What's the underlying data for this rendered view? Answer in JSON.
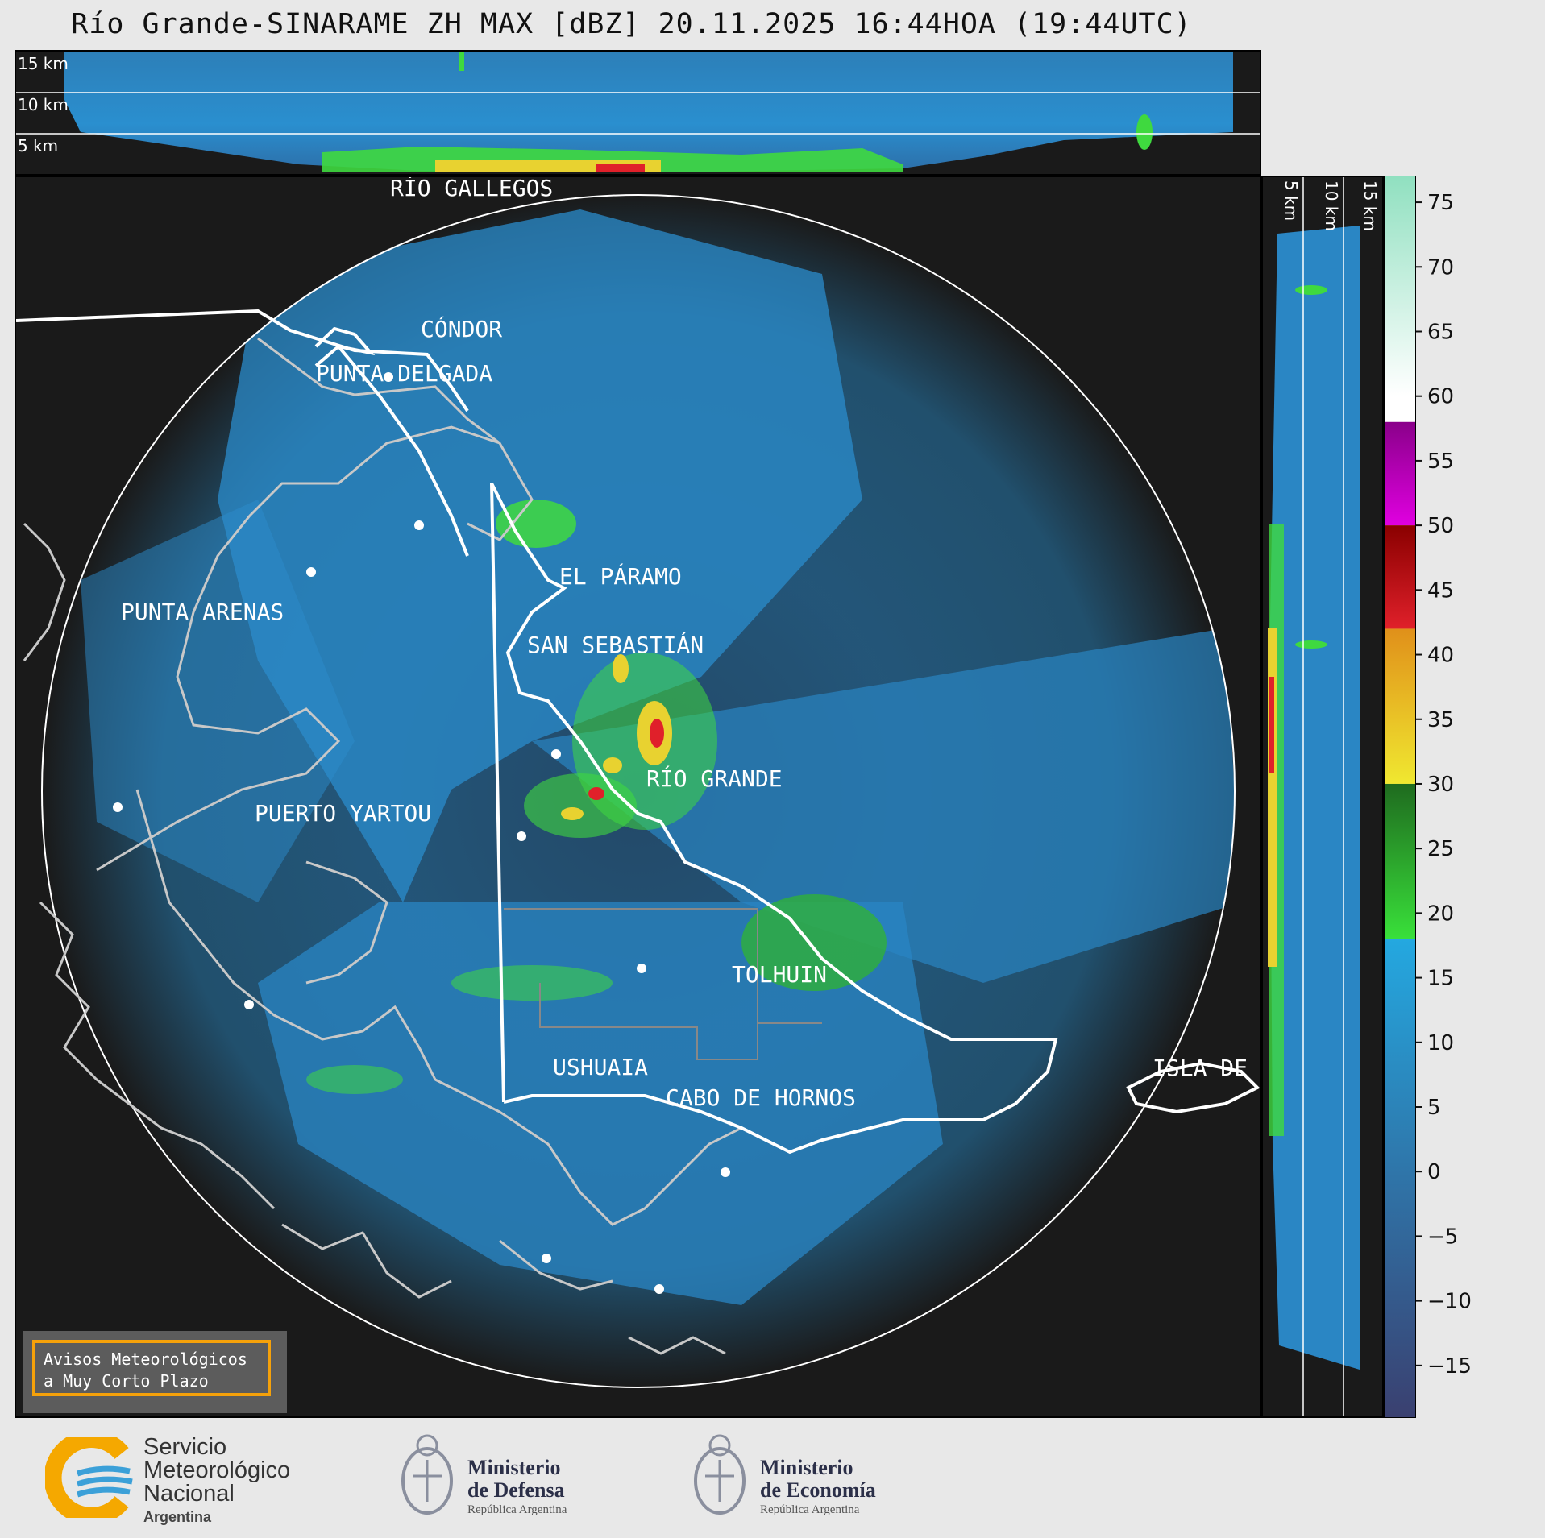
{
  "title": "Río Grande-SINARAME ZH MAX [dBZ] 20.11.2025 16:44HOA (19:44UTC)",
  "top_panel": {
    "altitude_labels": [
      "15 km",
      "10 km",
      "5 km"
    ]
  },
  "side_panel": {
    "altitude_labels": [
      "5 km",
      "10 km",
      "15 km"
    ]
  },
  "map": {
    "places": [
      "RÍO GALLEGOS",
      "CÓNDOR",
      "PUNTA DELGADA",
      "EL PÁRAMO",
      "PUNTA ARENAS",
      "SAN SEBASTIÁN",
      "RÍO GRANDE",
      "PUERTO YARTOU",
      "TOLHUIN",
      "USHUAIA",
      "CABO DE HORNOS",
      "ISLA DE LOS ESTADOS"
    ]
  },
  "colorbar": {
    "unit": "dBZ",
    "ticks": [
      "75",
      "70",
      "65",
      "60",
      "55",
      "50",
      "45",
      "40",
      "35",
      "30",
      "25",
      "20",
      "15",
      "10",
      "5",
      "0",
      "−5",
      "−10",
      "−15"
    ],
    "colors": {
      "low": "#3a4070",
      "mid": "#2d7fb8",
      "high_blue": "#24a8e0",
      "green": "#39e03a",
      "dark_green": "#1f6b1f",
      "yellow": "#f0e830",
      "orange": "#e0901a",
      "red": "#e0202a",
      "dark_red": "#8a0000",
      "magenta": "#e000e0",
      "purple": "#8a008a",
      "white": "#ffffff",
      "mint": "#90e0c0"
    }
  },
  "notice": {
    "line1": "Avisos Meteorológicos",
    "line2": "a Muy Corto Plazo"
  },
  "logos": {
    "smn": {
      "line1": "Servicio",
      "line2": "Meteorológico",
      "line3": "Nacional",
      "country": "Argentina"
    },
    "defensa": {
      "line1": "Ministerio",
      "line2": "de Defensa",
      "sub": "República Argentina"
    },
    "economia": {
      "line1": "Ministerio",
      "line2": "de Economía",
      "sub": "República Argentina"
    }
  }
}
